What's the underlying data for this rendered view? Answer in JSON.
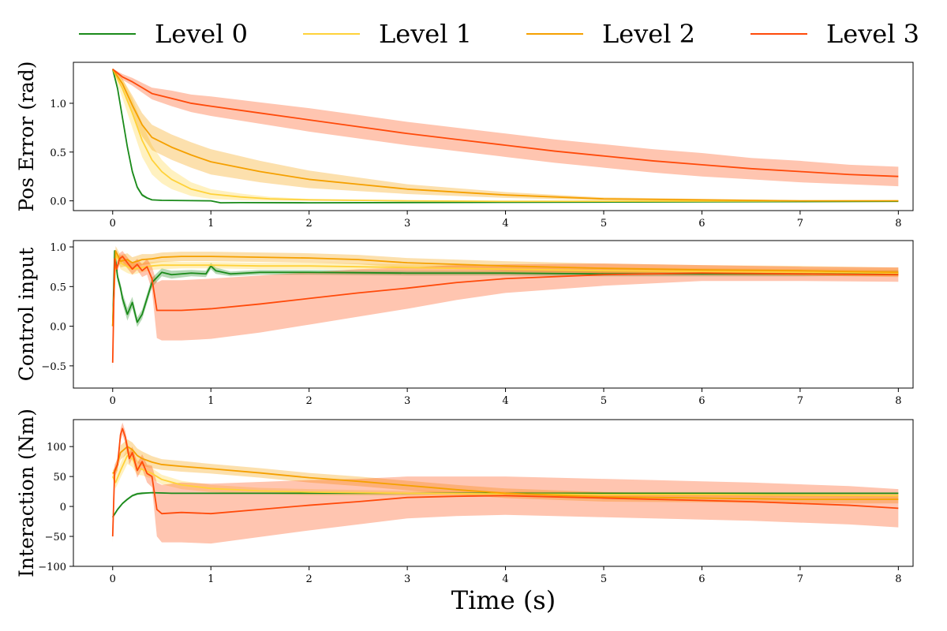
{
  "chart_data": {
    "type": "line",
    "xlabel": "Time (s)",
    "legend": [
      {
        "name": "Level 0",
        "color": "#1a8a1a"
      },
      {
        "name": "Level 1",
        "color": "#ffd23a"
      },
      {
        "name": "Level 2",
        "color": "#f5a000"
      },
      {
        "name": "Level 3",
        "color": "#ff4a0a"
      }
    ],
    "legend_position": "top",
    "xlim": [
      -0.4,
      8.15
    ],
    "xticks": [
      0,
      1,
      2,
      3,
      4,
      5,
      6,
      7,
      8
    ],
    "panels": [
      {
        "ylabel": "Pos Error (rad)",
        "ylim": [
          -0.1,
          1.42
        ],
        "yticks": [
          0.0,
          0.5,
          1.0
        ],
        "ytick_labels": [
          "0.0",
          "0.5",
          "1.0"
        ],
        "series": [
          {
            "name": "Level 0",
            "x": [
              0,
              0.05,
              0.1,
              0.15,
              0.2,
              0.25,
              0.3,
              0.35,
              0.4,
              0.5,
              0.7,
              1.0,
              1.1,
              1.3,
              2.0,
              4.0,
              8.0
            ],
            "y": [
              1.35,
              1.15,
              0.85,
              0.55,
              0.3,
              0.14,
              0.06,
              0.03,
              0.01,
              0.005,
              0.003,
              0.0,
              -0.02,
              -0.018,
              -0.02,
              -0.015,
              -0.005
            ],
            "band": [
              0.01,
              0.02,
              0.03,
              0.03,
              0.03,
              0.02,
              0.015,
              0.01,
              0.005,
              0.005,
              0.005,
              0.005,
              0.005,
              0.005,
              0.005,
              0.005,
              0.005
            ]
          },
          {
            "name": "Level 1",
            "x": [
              0,
              0.1,
              0.2,
              0.3,
              0.4,
              0.5,
              0.6,
              0.8,
              1.0,
              1.3,
              1.6,
              2.0,
              3.0,
              4.0,
              8.0
            ],
            "y": [
              1.35,
              1.15,
              0.9,
              0.62,
              0.42,
              0.3,
              0.22,
              0.12,
              0.07,
              0.04,
              0.02,
              0.01,
              0.0,
              -0.005,
              0.0
            ],
            "band": [
              0.01,
              0.1,
              0.15,
              0.17,
              0.15,
              0.12,
              0.1,
              0.07,
              0.05,
              0.035,
              0.02,
              0.01,
              0.005,
              0.005,
              0.005
            ]
          },
          {
            "name": "Level 2",
            "x": [
              0,
              0.1,
              0.2,
              0.3,
              0.4,
              0.6,
              0.8,
              1.0,
              1.5,
              2.0,
              2.5,
              3.0,
              4.0,
              5.0,
              6.0,
              7.0,
              8.0
            ],
            "y": [
              1.35,
              1.2,
              0.98,
              0.78,
              0.65,
              0.55,
              0.47,
              0.4,
              0.3,
              0.22,
              0.17,
              0.12,
              0.06,
              0.02,
              0.01,
              0.0,
              0.0
            ],
            "band": [
              0.01,
              0.05,
              0.1,
              0.12,
              0.13,
              0.13,
              0.13,
              0.13,
              0.11,
              0.09,
              0.07,
              0.05,
              0.03,
              0.015,
              0.01,
              0.005,
              0.005
            ]
          },
          {
            "name": "Level 3",
            "x": [
              0,
              0.1,
              0.2,
              0.3,
              0.4,
              0.6,
              0.8,
              1.0,
              1.5,
              2.0,
              2.5,
              3.0,
              3.5,
              4.0,
              4.5,
              5.0,
              5.5,
              6.0,
              6.5,
              7.0,
              7.5,
              8.0
            ],
            "y": [
              1.35,
              1.27,
              1.22,
              1.16,
              1.1,
              1.05,
              1.0,
              0.97,
              0.9,
              0.83,
              0.76,
              0.69,
              0.63,
              0.57,
              0.51,
              0.46,
              0.41,
              0.37,
              0.33,
              0.3,
              0.27,
              0.25
            ],
            "band": [
              0.005,
              0.03,
              0.04,
              0.05,
              0.06,
              0.08,
              0.09,
              0.1,
              0.11,
              0.12,
              0.12,
              0.12,
              0.12,
              0.12,
              0.12,
              0.12,
              0.12,
              0.12,
              0.11,
              0.11,
              0.1,
              0.1
            ]
          }
        ]
      },
      {
        "ylabel": "Control input",
        "ylim": [
          -0.78,
          1.08
        ],
        "yticks": [
          -0.5,
          0.0,
          0.5,
          1.0
        ],
        "ytick_labels": [
          "−0.5",
          "0.0",
          "0.5",
          "1.0"
        ],
        "series": [
          {
            "name": "Level 0",
            "x": [
              0,
              0.02,
              0.05,
              0.08,
              0.1,
              0.15,
              0.2,
              0.25,
              0.3,
              0.35,
              0.4,
              0.5,
              0.6,
              0.8,
              0.95,
              1.0,
              1.05,
              1.2,
              1.5,
              2.0,
              3.0,
              4.0,
              5.0,
              6.0,
              7.0,
              8.0
            ],
            "y": [
              0.0,
              0.95,
              0.62,
              0.48,
              0.35,
              0.15,
              0.3,
              0.05,
              0.15,
              0.35,
              0.55,
              0.68,
              0.65,
              0.67,
              0.66,
              0.76,
              0.7,
              0.66,
              0.68,
              0.68,
              0.67,
              0.67,
              0.66,
              0.66,
              0.66,
              0.67
            ],
            "band": [
              0.0,
              0.02,
              0.05,
              0.06,
              0.07,
              0.08,
              0.07,
              0.06,
              0.06,
              0.06,
              0.06,
              0.05,
              0.05,
              0.04,
              0.04,
              0.04,
              0.04,
              0.03,
              0.03,
              0.03,
              0.03,
              0.03,
              0.03,
              0.03,
              0.03,
              0.03
            ]
          },
          {
            "name": "Level 1",
            "x": [
              0,
              0.03,
              0.08,
              0.15,
              0.2,
              0.3,
              0.4,
              0.5,
              0.7,
              1.0,
              1.5,
              2.0,
              3.0,
              4.0,
              5.0,
              6.0,
              7.0,
              8.0
            ],
            "y": [
              0.0,
              0.9,
              0.8,
              0.75,
              0.72,
              0.74,
              0.76,
              0.77,
              0.77,
              0.77,
              0.76,
              0.76,
              0.74,
              0.72,
              0.7,
              0.69,
              0.68,
              0.67
            ],
            "band": [
              0.0,
              0.05,
              0.08,
              0.08,
              0.07,
              0.06,
              0.05,
              0.05,
              0.04,
              0.04,
              0.04,
              0.04,
              0.04,
              0.04,
              0.04,
              0.04,
              0.04,
              0.04
            ]
          },
          {
            "name": "Level 2",
            "x": [
              0,
              0.03,
              0.08,
              0.15,
              0.2,
              0.3,
              0.4,
              0.5,
              0.7,
              1.0,
              1.5,
              2.0,
              2.5,
              3.0,
              4.0,
              5.0,
              6.0,
              7.0,
              8.0
            ],
            "y": [
              0.0,
              0.95,
              0.82,
              0.84,
              0.8,
              0.84,
              0.85,
              0.87,
              0.88,
              0.88,
              0.87,
              0.86,
              0.84,
              0.8,
              0.76,
              0.73,
              0.71,
              0.7,
              0.68
            ],
            "band": [
              0.0,
              0.06,
              0.08,
              0.08,
              0.07,
              0.07,
              0.06,
              0.06,
              0.06,
              0.06,
              0.06,
              0.06,
              0.06,
              0.06,
              0.06,
              0.06,
              0.06,
              0.06,
              0.06
            ]
          },
          {
            "name": "Level 3",
            "x": [
              0,
              0.02,
              0.04,
              0.07,
              0.1,
              0.15,
              0.2,
              0.25,
              0.3,
              0.35,
              0.4,
              0.45,
              0.5,
              0.7,
              1.0,
              1.5,
              2.0,
              2.5,
              3.0,
              3.5,
              4.0,
              5.0,
              6.0,
              7.0,
              8.0
            ],
            "y": [
              -0.46,
              0.85,
              0.72,
              0.85,
              0.88,
              0.8,
              0.72,
              0.78,
              0.7,
              0.75,
              0.6,
              0.2,
              0.2,
              0.2,
              0.22,
              0.28,
              0.35,
              0.42,
              0.48,
              0.55,
              0.6,
              0.65,
              0.67,
              0.66,
              0.65
            ],
            "band": [
              0.1,
              0.08,
              0.08,
              0.07,
              0.07,
              0.07,
              0.07,
              0.07,
              0.08,
              0.1,
              0.15,
              0.35,
              0.38,
              0.38,
              0.38,
              0.36,
              0.33,
              0.3,
              0.26,
              0.22,
              0.18,
              0.14,
              0.1,
              0.09,
              0.09
            ]
          }
        ]
      },
      {
        "ylabel": "Interaction (Nm)",
        "ylim": [
          -100,
          145
        ],
        "yticks": [
          -100,
          -50,
          0,
          50,
          100
        ],
        "ytick_labels": [
          "−100",
          "−50",
          "0",
          "50",
          "100"
        ],
        "series": [
          {
            "name": "Level 0",
            "x": [
              0,
              0.05,
              0.1,
              0.15,
              0.2,
              0.25,
              0.3,
              0.4,
              0.6,
              1.0,
              2.0,
              3.0,
              4.0,
              5.0,
              6.0,
              7.0,
              8.0
            ],
            "y": [
              -18,
              -5,
              5,
              12,
              18,
              21,
              22,
              23,
              22,
              22,
              22,
              22,
              22,
              22,
              22,
              22,
              22
            ],
            "band": [
              2,
              2,
              2,
              2,
              2,
              2,
              2,
              1,
              1,
              1,
              1,
              1,
              1,
              1,
              1,
              1,
              1
            ]
          },
          {
            "name": "Level 1",
            "x": [
              0,
              0.03,
              0.08,
              0.15,
              0.2,
              0.25,
              0.3,
              0.4,
              0.5,
              0.7,
              1.0,
              1.5,
              2.0,
              3.0,
              4.0,
              5.0,
              6.0,
              7.0,
              8.0
            ],
            "y": [
              50,
              40,
              60,
              85,
              80,
              65,
              62,
              55,
              45,
              36,
              30,
              26,
              24,
              22,
              21,
              20,
              20,
              19,
              18
            ],
            "band": [
              5,
              10,
              12,
              14,
              14,
              12,
              10,
              9,
              8,
              7,
              6,
              5,
              5,
              4,
              4,
              4,
              4,
              4,
              4
            ]
          },
          {
            "name": "Level 2",
            "x": [
              0,
              0.03,
              0.08,
              0.15,
              0.2,
              0.25,
              0.3,
              0.4,
              0.5,
              0.7,
              1.0,
              1.5,
              2.0,
              2.5,
              3.0,
              3.5,
              4.0,
              5.0,
              6.0,
              7.0,
              8.0
            ],
            "y": [
              55,
              60,
              90,
              100,
              95,
              85,
              80,
              74,
              70,
              67,
              63,
              56,
              48,
              42,
              35,
              28,
              22,
              16,
              14,
              12,
              12
            ],
            "band": [
              5,
              10,
              12,
              12,
              12,
              12,
              12,
              10,
              9,
              9,
              8,
              8,
              8,
              8,
              8,
              8,
              8,
              8,
              7,
              7,
              7
            ]
          },
          {
            "name": "Level 3",
            "x": [
              0,
              0.02,
              0.05,
              0.08,
              0.1,
              0.13,
              0.17,
              0.2,
              0.25,
              0.3,
              0.35,
              0.4,
              0.45,
              0.5,
              0.7,
              1.0,
              1.5,
              2.0,
              2.5,
              3.0,
              3.5,
              4.0,
              4.5,
              5.0,
              5.5,
              6.0,
              6.5,
              7.0,
              7.5,
              8.0
            ],
            "y": [
              -50,
              60,
              70,
              120,
              130,
              115,
              80,
              90,
              60,
              75,
              55,
              50,
              -5,
              -12,
              -10,
              -12,
              -5,
              2,
              8,
              15,
              17,
              18,
              16,
              14,
              12,
              10,
              8,
              5,
              2,
              -3
            ],
            "band": [
              10,
              10,
              10,
              10,
              10,
              10,
              10,
              10,
              12,
              12,
              15,
              18,
              45,
              48,
              50,
              50,
              46,
              42,
              38,
              35,
              33,
              32,
              32,
              32,
              32,
              32,
              32,
              32,
              32,
              32
            ]
          }
        ]
      }
    ]
  }
}
